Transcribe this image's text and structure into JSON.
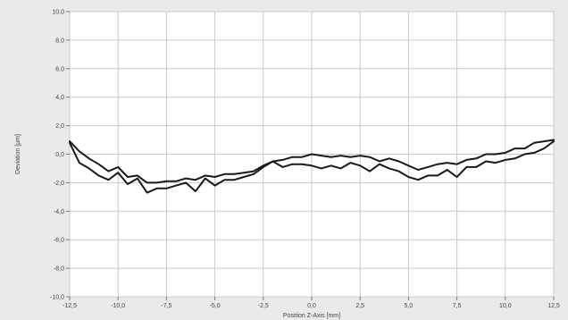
{
  "chart_data": {
    "type": "line",
    "xlabel": "Position Z-Axis [mm]",
    "ylabel": "Deviation [µm]",
    "xlim": [
      -12.5,
      12.5
    ],
    "ylim": [
      -10.0,
      10.0
    ],
    "x_ticks": [
      -12.5,
      -10.0,
      -7.5,
      -5.0,
      -2.5,
      0.0,
      2.5,
      5.0,
      7.5,
      10.0,
      12.5
    ],
    "x_tick_labels": [
      "-12,5",
      "-10,0",
      "-7,5",
      "-5,0",
      "-2,5",
      "0,0",
      "2,5",
      "5,0",
      "7,5",
      "10,0",
      "12,5"
    ],
    "y_ticks": [
      10,
      8,
      6,
      4,
      2,
      0,
      -2,
      -4,
      -6,
      -8,
      -10
    ],
    "y_tick_labels": [
      "10,0",
      "8,0",
      "6,0",
      "4,0",
      "2,0",
      "0,0",
      "-2,0",
      "-4,0",
      "-6,0",
      "-8,0",
      "-10,0"
    ],
    "grid": true,
    "legend": "none",
    "series_color": "#1a1a1a",
    "series": [
      {
        "x": [
          -12.5,
          -12.0,
          -11.5,
          -11.0,
          -10.5,
          -10.0,
          -9.5,
          -9.0,
          -8.5,
          -8.0,
          -7.5,
          -7.0,
          -6.5,
          -6.0,
          -5.5,
          -5.0,
          -4.5,
          -4.0,
          -3.5,
          -3.0,
          -2.5,
          -2.0,
          -1.5,
          -1.0,
          -0.5,
          0.0,
          0.5,
          1.0,
          1.5,
          2.0,
          2.5,
          3.0,
          3.5,
          4.0,
          4.5,
          5.0,
          5.5,
          6.0,
          6.5,
          7.0,
          7.5,
          8.0,
          8.5,
          9.0,
          9.5,
          10.0,
          10.5,
          11.0,
          11.5,
          12.0,
          12.5
        ],
        "y": [
          0.9,
          0.2,
          -0.3,
          -0.7,
          -1.2,
          -0.9,
          -1.6,
          -1.5,
          -2.0,
          -2.0,
          -1.9,
          -1.9,
          -1.7,
          -1.8,
          -1.5,
          -1.6,
          -1.4,
          -1.4,
          -1.3,
          -1.2,
          -0.8,
          -0.5,
          -0.4,
          -0.2,
          -0.2,
          0.0,
          -0.1,
          -0.2,
          -0.1,
          -0.2,
          -0.1,
          -0.2,
          -0.5,
          -0.3,
          -0.5,
          -0.8,
          -1.1,
          -0.9,
          -0.7,
          -0.6,
          -0.7,
          -0.4,
          -0.3,
          0.0,
          0.0,
          0.1,
          0.4,
          0.4,
          0.8,
          0.9,
          1.0
        ]
      },
      {
        "x": [
          -12.5,
          -12.0,
          -11.5,
          -11.0,
          -10.5,
          -10.0,
          -9.5,
          -9.0,
          -8.5,
          -8.0,
          -7.5,
          -7.0,
          -6.5,
          -6.0,
          -5.5,
          -5.0,
          -4.5,
          -4.0,
          -3.5,
          -3.0,
          -2.5,
          -2.0,
          -1.5,
          -1.0,
          -0.5,
          0.0,
          0.5,
          1.0,
          1.5,
          2.0,
          2.5,
          3.0,
          3.5,
          4.0,
          4.5,
          5.0,
          5.5,
          6.0,
          6.5,
          7.0,
          7.5,
          8.0,
          8.5,
          9.0,
          9.5,
          10.0,
          10.5,
          11.0,
          11.5,
          12.0,
          12.5
        ],
        "y": [
          0.8,
          -0.6,
          -1.0,
          -1.5,
          -1.8,
          -1.3,
          -2.1,
          -1.7,
          -2.7,
          -2.4,
          -2.4,
          -2.2,
          -2.0,
          -2.6,
          -1.7,
          -2.2,
          -1.8,
          -1.8,
          -1.6,
          -1.4,
          -0.9,
          -0.5,
          -0.9,
          -0.7,
          -0.7,
          -0.8,
          -1.0,
          -0.8,
          -1.0,
          -0.6,
          -0.8,
          -1.2,
          -0.7,
          -1.0,
          -1.2,
          -1.6,
          -1.8,
          -1.5,
          -1.5,
          -1.1,
          -1.6,
          -0.9,
          -0.9,
          -0.5,
          -0.6,
          -0.4,
          -0.3,
          0.0,
          0.1,
          0.4,
          0.9
        ]
      }
    ]
  }
}
